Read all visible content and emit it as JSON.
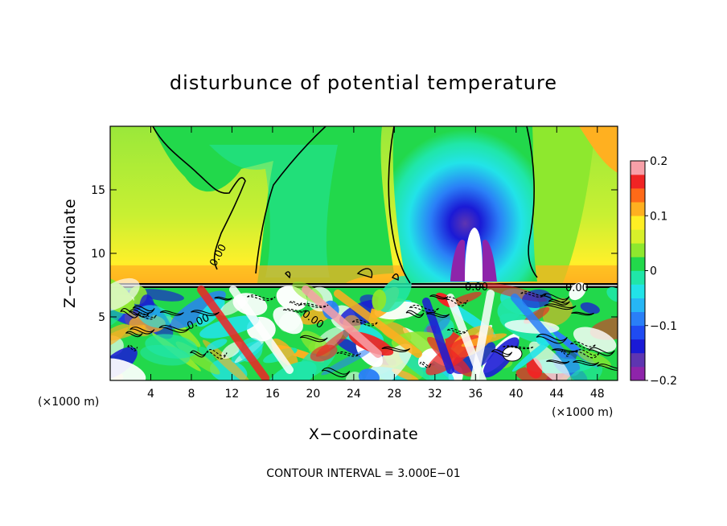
{
  "chart_data": {
    "type": "heatmap",
    "title": "disturbunce of potential temperature",
    "xlabel": "X−coordinate",
    "ylabel": "Z−coordinate",
    "x_unit": "(×1000 m)",
    "z_unit": "(×1000 m)",
    "xlim": [
      0,
      50
    ],
    "ylim": [
      0,
      20
    ],
    "x_ticks": [
      4,
      8,
      12,
      16,
      20,
      24,
      28,
      32,
      36,
      40,
      44,
      48
    ],
    "y_ticks": [
      5,
      10,
      15
    ],
    "y_tick_labels": [
      "5",
      "10",
      "15"
    ],
    "colorbar": {
      "min": -0.2,
      "max": 0.2,
      "ticks": [
        -0.2,
        -0.1,
        0,
        0.1,
        0.2
      ],
      "tick_labels": [
        "−0.2",
        "−0.1",
        "0",
        "0.1",
        "0.2"
      ],
      "levels": 16,
      "colors": [
        "#8e24aa",
        "#5e35b1",
        "#1a1ad6",
        "#1f4bf2",
        "#2a7ff7",
        "#26b6f5",
        "#22e3e8",
        "#20e6a8",
        "#22d84b",
        "#8ee82e",
        "#d8f02a",
        "#ffef24",
        "#ffb020",
        "#ff6a18",
        "#f02424",
        "#f8a0a8"
      ]
    },
    "contour_labels": [
      "0.00",
      "0.00",
      "0.00",
      "0.00",
      "0.00"
    ],
    "footer": "CONTOUR INTERVAL = 3.000E−01"
  }
}
